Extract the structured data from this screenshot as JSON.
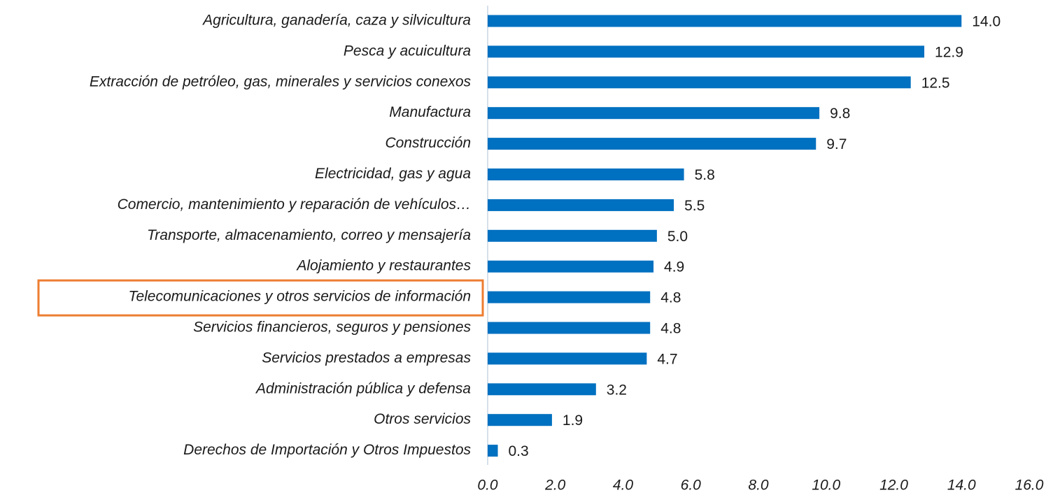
{
  "chart_data": {
    "type": "barh",
    "categories": [
      "Agricultura, ganadería, caza y silvicultura",
      "Pesca y acuicultura",
      "Extracción de petróleo, gas, minerales y servicios conexos",
      "Manufactura",
      "Construcción",
      "Electricidad, gas y agua",
      "Comercio, mantenimiento y reparación de vehículos…",
      "Transporte, almacenamiento, correo y mensajería",
      "Alojamiento y restaurantes",
      "Telecomunicaciones y otros servicios de información",
      "Servicios financieros, seguros y pensiones",
      "Servicios prestados a empresas",
      "Administración pública y defensa",
      "Otros servicios",
      "Derechos de Importación y Otros Impuestos"
    ],
    "values": [
      14.0,
      12.9,
      12.5,
      9.8,
      9.7,
      5.8,
      5.5,
      5.0,
      4.9,
      4.8,
      4.8,
      4.7,
      3.2,
      1.9,
      0.3
    ],
    "value_labels": [
      "14.0",
      "12.9",
      "12.5",
      "9.8",
      "9.7",
      "5.8",
      "5.5",
      "5.0",
      "4.9",
      "4.8",
      "4.8",
      "4.7",
      "3.2",
      "1.9",
      "0.3"
    ],
    "color": "#0070c0",
    "xlim": [
      0,
      16
    ],
    "xticks": [
      {
        "value": 0,
        "label": "0.0"
      },
      {
        "value": 2,
        "label": "2.0"
      },
      {
        "value": 4,
        "label": "4.0"
      },
      {
        "value": 6,
        "label": "6.0"
      },
      {
        "value": 8,
        "label": "8.0"
      },
      {
        "value": 10,
        "label": "10.0"
      },
      {
        "value": 12,
        "label": "12.0"
      },
      {
        "value": 14,
        "label": "14.0"
      },
      {
        "value": 16,
        "label": "16.0"
      }
    ],
    "grid": false,
    "highlight_index": 9,
    "highlight_color": "#ed7d31"
  }
}
